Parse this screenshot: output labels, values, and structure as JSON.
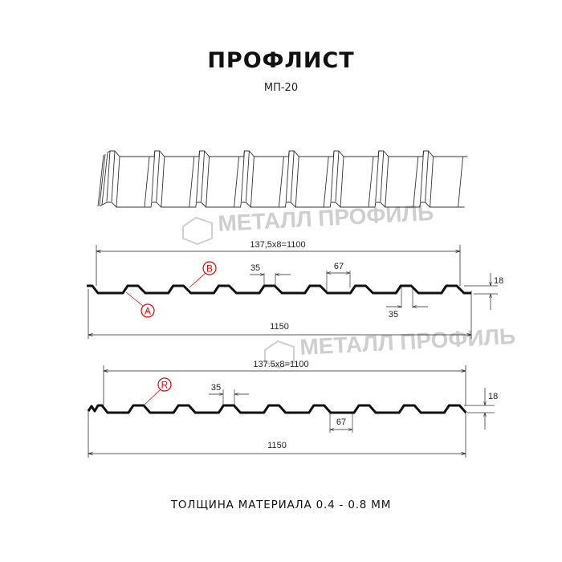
{
  "header": {
    "title": "ПРОФЛИСТ",
    "subtitle": "МП-20"
  },
  "watermark": "МЕТАЛЛ ПРОФИЛЬ",
  "profile_1": {
    "top_dimension": "137,5x8=1100",
    "bottom_dimension": "1150",
    "rib_top": "35",
    "rib_bottom": "35",
    "pitch": "67",
    "height": "18",
    "markers": [
      "A",
      "B"
    ]
  },
  "profile_2": {
    "top_dimension": "137.5x8=1100",
    "bottom_dimension": "1150",
    "rib_top": "35",
    "pitch": "67",
    "height": "18",
    "markers": [
      "R"
    ]
  },
  "footer": {
    "thickness": "ТОЛЩИНА МАТЕРИАЛА 0.4 - 0.8 ММ"
  },
  "colors": {
    "marker": "#e00000",
    "line": "#111111",
    "watermark": "#c8c8c8"
  }
}
